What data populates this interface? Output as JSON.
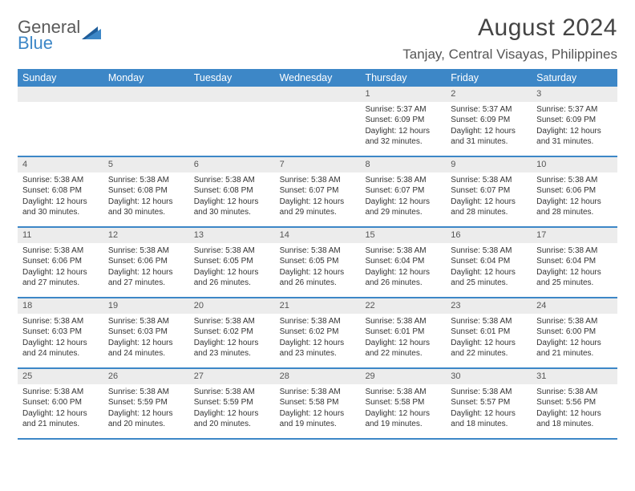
{
  "logo": {
    "general": "General",
    "blue": "Blue"
  },
  "title": "August 2024",
  "location": "Tanjay, Central Visayas, Philippines",
  "day_headers": [
    "Sunday",
    "Monday",
    "Tuesday",
    "Wednesday",
    "Thursday",
    "Friday",
    "Saturday"
  ],
  "colors": {
    "header_bg": "#3d87c7",
    "logo_blue": "#3d87c7",
    "daynum_bg": "#ececec"
  },
  "weeks": [
    [
      null,
      null,
      null,
      null,
      {
        "n": "1",
        "sr": "5:37 AM",
        "ss": "6:09 PM",
        "d1": "12 hours",
        "d2": "and 32 minutes."
      },
      {
        "n": "2",
        "sr": "5:37 AM",
        "ss": "6:09 PM",
        "d1": "12 hours",
        "d2": "and 31 minutes."
      },
      {
        "n": "3",
        "sr": "5:37 AM",
        "ss": "6:09 PM",
        "d1": "12 hours",
        "d2": "and 31 minutes."
      }
    ],
    [
      {
        "n": "4",
        "sr": "5:38 AM",
        "ss": "6:08 PM",
        "d1": "12 hours",
        "d2": "and 30 minutes."
      },
      {
        "n": "5",
        "sr": "5:38 AM",
        "ss": "6:08 PM",
        "d1": "12 hours",
        "d2": "and 30 minutes."
      },
      {
        "n": "6",
        "sr": "5:38 AM",
        "ss": "6:08 PM",
        "d1": "12 hours",
        "d2": "and 30 minutes."
      },
      {
        "n": "7",
        "sr": "5:38 AM",
        "ss": "6:07 PM",
        "d1": "12 hours",
        "d2": "and 29 minutes."
      },
      {
        "n": "8",
        "sr": "5:38 AM",
        "ss": "6:07 PM",
        "d1": "12 hours",
        "d2": "and 29 minutes."
      },
      {
        "n": "9",
        "sr": "5:38 AM",
        "ss": "6:07 PM",
        "d1": "12 hours",
        "d2": "and 28 minutes."
      },
      {
        "n": "10",
        "sr": "5:38 AM",
        "ss": "6:06 PM",
        "d1": "12 hours",
        "d2": "and 28 minutes."
      }
    ],
    [
      {
        "n": "11",
        "sr": "5:38 AM",
        "ss": "6:06 PM",
        "d1": "12 hours",
        "d2": "and 27 minutes."
      },
      {
        "n": "12",
        "sr": "5:38 AM",
        "ss": "6:06 PM",
        "d1": "12 hours",
        "d2": "and 27 minutes."
      },
      {
        "n": "13",
        "sr": "5:38 AM",
        "ss": "6:05 PM",
        "d1": "12 hours",
        "d2": "and 26 minutes."
      },
      {
        "n": "14",
        "sr": "5:38 AM",
        "ss": "6:05 PM",
        "d1": "12 hours",
        "d2": "and 26 minutes."
      },
      {
        "n": "15",
        "sr": "5:38 AM",
        "ss": "6:04 PM",
        "d1": "12 hours",
        "d2": "and 26 minutes."
      },
      {
        "n": "16",
        "sr": "5:38 AM",
        "ss": "6:04 PM",
        "d1": "12 hours",
        "d2": "and 25 minutes."
      },
      {
        "n": "17",
        "sr": "5:38 AM",
        "ss": "6:04 PM",
        "d1": "12 hours",
        "d2": "and 25 minutes."
      }
    ],
    [
      {
        "n": "18",
        "sr": "5:38 AM",
        "ss": "6:03 PM",
        "d1": "12 hours",
        "d2": "and 24 minutes."
      },
      {
        "n": "19",
        "sr": "5:38 AM",
        "ss": "6:03 PM",
        "d1": "12 hours",
        "d2": "and 24 minutes."
      },
      {
        "n": "20",
        "sr": "5:38 AM",
        "ss": "6:02 PM",
        "d1": "12 hours",
        "d2": "and 23 minutes."
      },
      {
        "n": "21",
        "sr": "5:38 AM",
        "ss": "6:02 PM",
        "d1": "12 hours",
        "d2": "and 23 minutes."
      },
      {
        "n": "22",
        "sr": "5:38 AM",
        "ss": "6:01 PM",
        "d1": "12 hours",
        "d2": "and 22 minutes."
      },
      {
        "n": "23",
        "sr": "5:38 AM",
        "ss": "6:01 PM",
        "d1": "12 hours",
        "d2": "and 22 minutes."
      },
      {
        "n": "24",
        "sr": "5:38 AM",
        "ss": "6:00 PM",
        "d1": "12 hours",
        "d2": "and 21 minutes."
      }
    ],
    [
      {
        "n": "25",
        "sr": "5:38 AM",
        "ss": "6:00 PM",
        "d1": "12 hours",
        "d2": "and 21 minutes."
      },
      {
        "n": "26",
        "sr": "5:38 AM",
        "ss": "5:59 PM",
        "d1": "12 hours",
        "d2": "and 20 minutes."
      },
      {
        "n": "27",
        "sr": "5:38 AM",
        "ss": "5:59 PM",
        "d1": "12 hours",
        "d2": "and 20 minutes."
      },
      {
        "n": "28",
        "sr": "5:38 AM",
        "ss": "5:58 PM",
        "d1": "12 hours",
        "d2": "and 19 minutes."
      },
      {
        "n": "29",
        "sr": "5:38 AM",
        "ss": "5:58 PM",
        "d1": "12 hours",
        "d2": "and 19 minutes."
      },
      {
        "n": "30",
        "sr": "5:38 AM",
        "ss": "5:57 PM",
        "d1": "12 hours",
        "d2": "and 18 minutes."
      },
      {
        "n": "31",
        "sr": "5:38 AM",
        "ss": "5:56 PM",
        "d1": "12 hours",
        "d2": "and 18 minutes."
      }
    ]
  ],
  "labels": {
    "sunrise": "Sunrise: ",
    "sunset": "Sunset: ",
    "daylight": "Daylight: "
  }
}
